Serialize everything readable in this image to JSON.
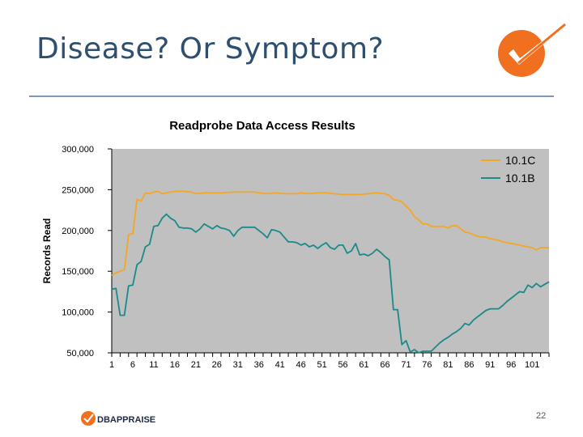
{
  "slide": {
    "title": "Disease?  Or Symptom?",
    "page_number": "22",
    "footer_logo_text": "DBAPPRAISE"
  },
  "colors": {
    "title": "#2f4f6f",
    "rule": "#7f9ab8",
    "plot_bg": "#c0c0c0",
    "accent": "#f07020"
  },
  "chart_data": {
    "type": "line",
    "title": "Readprobe Data Access Results",
    "xlabel": "",
    "ylabel": "Records Read",
    "ylim": [
      50000,
      300000
    ],
    "xlim": [
      1,
      105
    ],
    "yticks": [
      50000,
      100000,
      150000,
      200000,
      250000,
      300000
    ],
    "ytick_labels": [
      "50,000",
      "100,000",
      "150,000",
      "200,000",
      "250,000",
      "300,000"
    ],
    "xtick_labels": [
      "1",
      "6",
      "11",
      "16",
      "21",
      "26",
      "31",
      "36",
      "41",
      "46",
      "51",
      "56",
      "61",
      "66",
      "71",
      "76",
      "81",
      "86",
      "91",
      "96",
      "101"
    ],
    "legend_position": "top-right",
    "series": [
      {
        "name": "10.1C",
        "color": "#f5a623",
        "points": [
          [
            1,
            145000
          ],
          [
            2,
            148000
          ],
          [
            3,
            150000
          ],
          [
            4,
            152000
          ],
          [
            5,
            195000
          ],
          [
            6,
            196000
          ],
          [
            7,
            238000
          ],
          [
            8,
            236000
          ],
          [
            9,
            246000
          ],
          [
            10,
            245000
          ],
          [
            11,
            247000
          ],
          [
            12,
            248000
          ],
          [
            13,
            245000
          ],
          [
            14,
            246000
          ],
          [
            15,
            247000
          ],
          [
            16,
            248000
          ],
          [
            17,
            248000
          ],
          [
            18,
            248000
          ],
          [
            20,
            247000
          ],
          [
            21,
            245000
          ],
          [
            23,
            246000
          ],
          [
            25,
            246000
          ],
          [
            27,
            246000
          ],
          [
            30,
            247000
          ],
          [
            33,
            247000
          ],
          [
            35,
            247000
          ],
          [
            36,
            246000
          ],
          [
            38,
            245000
          ],
          [
            40,
            246000
          ],
          [
            42,
            245000
          ],
          [
            45,
            245000
          ],
          [
            46,
            246000
          ],
          [
            48,
            245000
          ],
          [
            50,
            246000
          ],
          [
            52,
            246000
          ],
          [
            54,
            245000
          ],
          [
            56,
            244000
          ],
          [
            58,
            244000
          ],
          [
            60,
            244000
          ],
          [
            62,
            245000
          ],
          [
            64,
            246000
          ],
          [
            66,
            245000
          ],
          [
            67,
            243000
          ],
          [
            68,
            238000
          ],
          [
            69,
            237000
          ],
          [
            70,
            235000
          ],
          [
            71,
            230000
          ],
          [
            72,
            225000
          ],
          [
            73,
            217000
          ],
          [
            74,
            213000
          ],
          [
            75,
            208000
          ],
          [
            76,
            208000
          ],
          [
            77,
            205000
          ],
          [
            78,
            205000
          ],
          [
            80,
            205000
          ],
          [
            81,
            203000
          ],
          [
            82,
            206000
          ],
          [
            83,
            206000
          ],
          [
            84,
            202000
          ],
          [
            85,
            198000
          ],
          [
            86,
            197000
          ],
          [
            87,
            195000
          ],
          [
            88,
            193000
          ],
          [
            89,
            192000
          ],
          [
            90,
            192000
          ],
          [
            91,
            190000
          ],
          [
            92,
            189000
          ],
          [
            93,
            188000
          ],
          [
            94,
            186000
          ],
          [
            95,
            185000
          ],
          [
            96,
            184000
          ],
          [
            97,
            183000
          ],
          [
            98,
            182000
          ],
          [
            99,
            181000
          ],
          [
            100,
            180000
          ],
          [
            101,
            179000
          ],
          [
            102,
            176000
          ],
          [
            103,
            179000
          ],
          [
            104,
            179000
          ],
          [
            105,
            179000
          ]
        ]
      },
      {
        "name": "10.1B",
        "color": "#1a8a8a",
        "points": [
          [
            1,
            128000
          ],
          [
            2,
            129000
          ],
          [
            3,
            96000
          ],
          [
            4,
            96000
          ],
          [
            5,
            132000
          ],
          [
            6,
            133000
          ],
          [
            7,
            158000
          ],
          [
            8,
            162000
          ],
          [
            9,
            180000
          ],
          [
            10,
            183000
          ],
          [
            11,
            205000
          ],
          [
            12,
            206000
          ],
          [
            13,
            215000
          ],
          [
            14,
            220000
          ],
          [
            15,
            215000
          ],
          [
            16,
            212000
          ],
          [
            17,
            204000
          ],
          [
            18,
            203000
          ],
          [
            19,
            203000
          ],
          [
            20,
            202000
          ],
          [
            21,
            198000
          ],
          [
            22,
            202000
          ],
          [
            23,
            208000
          ],
          [
            24,
            205000
          ],
          [
            25,
            202000
          ],
          [
            26,
            206000
          ],
          [
            27,
            203000
          ],
          [
            28,
            202000
          ],
          [
            29,
            200000
          ],
          [
            30,
            193000
          ],
          [
            31,
            200000
          ],
          [
            32,
            204000
          ],
          [
            33,
            204000
          ],
          [
            35,
            204000
          ],
          [
            36,
            200000
          ],
          [
            37,
            196000
          ],
          [
            38,
            191000
          ],
          [
            39,
            201000
          ],
          [
            40,
            200000
          ],
          [
            41,
            198000
          ],
          [
            42,
            192000
          ],
          [
            43,
            186000
          ],
          [
            44,
            186000
          ],
          [
            45,
            185000
          ],
          [
            46,
            182000
          ],
          [
            47,
            184000
          ],
          [
            48,
            180000
          ],
          [
            49,
            182000
          ],
          [
            50,
            178000
          ],
          [
            51,
            182000
          ],
          [
            52,
            185000
          ],
          [
            53,
            179000
          ],
          [
            54,
            177000
          ],
          [
            55,
            182000
          ],
          [
            56,
            182000
          ],
          [
            57,
            172000
          ],
          [
            58,
            175000
          ],
          [
            59,
            184000
          ],
          [
            60,
            170000
          ],
          [
            61,
            171000
          ],
          [
            62,
            169000
          ],
          [
            63,
            172000
          ],
          [
            64,
            177000
          ],
          [
            65,
            173000
          ],
          [
            66,
            168000
          ],
          [
            67,
            164000
          ],
          [
            68,
            103000
          ],
          [
            69,
            103000
          ],
          [
            70,
            60000
          ],
          [
            71,
            65000
          ],
          [
            72,
            51000
          ],
          [
            73,
            54000
          ],
          [
            74,
            50000
          ],
          [
            75,
            52000
          ],
          [
            76,
            52000
          ],
          [
            77,
            52000
          ],
          [
            78,
            57000
          ],
          [
            79,
            62000
          ],
          [
            80,
            66000
          ],
          [
            81,
            69000
          ],
          [
            82,
            73000
          ],
          [
            83,
            76000
          ],
          [
            84,
            80000
          ],
          [
            85,
            86000
          ],
          [
            86,
            84000
          ],
          [
            87,
            90000
          ],
          [
            88,
            94000
          ],
          [
            89,
            98000
          ],
          [
            90,
            102000
          ],
          [
            91,
            104000
          ],
          [
            93,
            104000
          ],
          [
            94,
            108000
          ],
          [
            95,
            113000
          ],
          [
            96,
            117000
          ],
          [
            97,
            121000
          ],
          [
            98,
            125000
          ],
          [
            99,
            124000
          ],
          [
            100,
            133000
          ],
          [
            101,
            130000
          ],
          [
            102,
            135000
          ],
          [
            103,
            131000
          ],
          [
            104,
            134000
          ],
          [
            105,
            137000
          ]
        ]
      }
    ]
  }
}
